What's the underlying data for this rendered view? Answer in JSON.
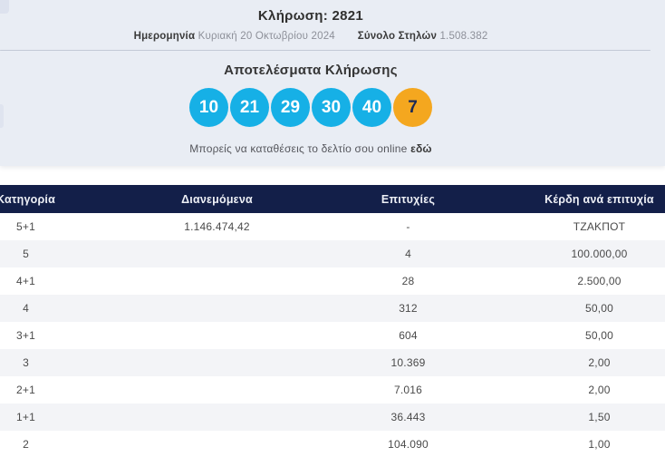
{
  "header": {
    "draw_title": "Κλήρωση: 2821",
    "date_label": "Ημερομηνία",
    "date_value": "Κυριακή 20 Οκτωβρίου 2024",
    "columns_label": "Σύνολο Στηλών",
    "columns_value": "1.508.382"
  },
  "results": {
    "title": "Αποτελέσματα Κλήρωσης",
    "numbers": [
      {
        "value": "10",
        "type": "main"
      },
      {
        "value": "21",
        "type": "main"
      },
      {
        "value": "29",
        "type": "main"
      },
      {
        "value": "30",
        "type": "main"
      },
      {
        "value": "40",
        "type": "main"
      },
      {
        "value": "7",
        "type": "bonus"
      }
    ],
    "online_text": "Μπορείς να καταθέσεις το δελτίο σου online",
    "online_link_label": "εδώ"
  },
  "table": {
    "headers": [
      "Κατηγορία",
      "Διανεμόμενα",
      "Επιτυχίες",
      "Κέρδη ανά επιτυχία"
    ],
    "rows": [
      [
        "5+1",
        "1.146.474,42",
        "-",
        "ΤΖΑΚΠΟΤ"
      ],
      [
        "5",
        "",
        "4",
        "100.000,00"
      ],
      [
        "4+1",
        "",
        "28",
        "2.500,00"
      ],
      [
        "4",
        "",
        "312",
        "50,00"
      ],
      [
        "3+1",
        "",
        "604",
        "50,00"
      ],
      [
        "3",
        "",
        "10.369",
        "2,00"
      ],
      [
        "2+1",
        "",
        "7.016",
        "2,00"
      ],
      [
        "1+1",
        "",
        "36.443",
        "1,50"
      ],
      [
        "2",
        "",
        "104.090",
        "1,00"
      ]
    ]
  },
  "colors": {
    "panel_bg": "#e9edf4",
    "table_header_bg": "#131f49",
    "ball_main": "#16b0e6",
    "ball_bonus": "#f4a71f",
    "row_alt": "#f3f4f7"
  }
}
